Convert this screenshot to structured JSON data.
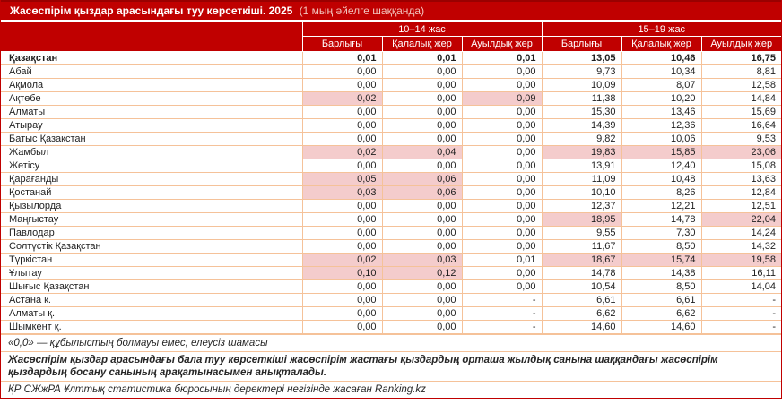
{
  "title": {
    "main": "Жасөспірім қыздар арасындағы туу көрсеткіші. 2025",
    "sub": "(1 мың әйелге шаққанда)"
  },
  "table": {
    "header": {
      "groups": [
        "10–14 жас",
        "15–19 жас"
      ],
      "subcolumns": [
        "Барлығы",
        "Қалалық жер",
        "Ауылдық жер",
        "Барлығы",
        "Қалалық жер",
        "Ауылдық жер"
      ]
    },
    "rows": [
      {
        "region": "Қазақстан",
        "bold": true,
        "values": [
          "0,01",
          "0,01",
          "0,01",
          "13,05",
          "10,46",
          "16,75"
        ],
        "hl": [
          false,
          false,
          false,
          false,
          false,
          false
        ]
      },
      {
        "region": "Абай",
        "values": [
          "0,00",
          "0,00",
          "0,00",
          "9,73",
          "10,34",
          "8,81"
        ],
        "hl": [
          false,
          false,
          false,
          false,
          false,
          false
        ]
      },
      {
        "region": "Ақмола",
        "values": [
          "0,00",
          "0,00",
          "0,00",
          "10,09",
          "8,07",
          "12,58"
        ],
        "hl": [
          false,
          false,
          false,
          false,
          false,
          false
        ]
      },
      {
        "region": "Ақтөбе",
        "values": [
          "0,02",
          "0,00",
          "0,09",
          "11,38",
          "10,20",
          "14,84"
        ],
        "hl": [
          true,
          false,
          true,
          false,
          false,
          false
        ]
      },
      {
        "region": "Алматы",
        "values": [
          "0,00",
          "0,00",
          "0,00",
          "15,30",
          "13,46",
          "15,69"
        ],
        "hl": [
          false,
          false,
          false,
          false,
          false,
          false
        ]
      },
      {
        "region": "Атырау",
        "values": [
          "0,00",
          "0,00",
          "0,00",
          "14,39",
          "12,36",
          "16,64"
        ],
        "hl": [
          false,
          false,
          false,
          false,
          false,
          false
        ]
      },
      {
        "region": "Батыс Қазақстан",
        "values": [
          "0,00",
          "0,00",
          "0,00",
          "9,82",
          "10,06",
          "9,53"
        ],
        "hl": [
          false,
          false,
          false,
          false,
          false,
          false
        ]
      },
      {
        "region": "Жамбыл",
        "values": [
          "0,02",
          "0,04",
          "0,00",
          "19,83",
          "15,85",
          "23,06"
        ],
        "hl": [
          true,
          true,
          false,
          true,
          true,
          true
        ]
      },
      {
        "region": "Жетісу",
        "values": [
          "0,00",
          "0,00",
          "0,00",
          "13,91",
          "12,40",
          "15,08"
        ],
        "hl": [
          false,
          false,
          false,
          false,
          false,
          false
        ]
      },
      {
        "region": "Қарағанды",
        "values": [
          "0,05",
          "0,06",
          "0,00",
          "11,09",
          "10,48",
          "13,63"
        ],
        "hl": [
          true,
          true,
          false,
          false,
          false,
          false
        ]
      },
      {
        "region": "Қостанай",
        "values": [
          "0,03",
          "0,06",
          "0,00",
          "10,10",
          "8,26",
          "12,84"
        ],
        "hl": [
          true,
          true,
          false,
          false,
          false,
          false
        ]
      },
      {
        "region": "Қызылорда",
        "values": [
          "0,00",
          "0,00",
          "0,00",
          "12,37",
          "12,21",
          "12,51"
        ],
        "hl": [
          false,
          false,
          false,
          false,
          false,
          false
        ]
      },
      {
        "region": "Маңғыстау",
        "values": [
          "0,00",
          "0,00",
          "0,00",
          "18,95",
          "14,78",
          "22,04"
        ],
        "hl": [
          false,
          false,
          false,
          true,
          false,
          true
        ]
      },
      {
        "region": "Павлодар",
        "values": [
          "0,00",
          "0,00",
          "0,00",
          "9,55",
          "7,30",
          "14,24"
        ],
        "hl": [
          false,
          false,
          false,
          false,
          false,
          false
        ]
      },
      {
        "region": "Солтүстік Қазақстан",
        "values": [
          "0,00",
          "0,00",
          "0,00",
          "11,67",
          "8,50",
          "14,32"
        ],
        "hl": [
          false,
          false,
          false,
          false,
          false,
          false
        ]
      },
      {
        "region": "Түркістан",
        "values": [
          "0,02",
          "0,03",
          "0,01",
          "18,67",
          "15,74",
          "19,58"
        ],
        "hl": [
          true,
          true,
          false,
          true,
          true,
          true
        ]
      },
      {
        "region": "Ұлытау",
        "values": [
          "0,10",
          "0,12",
          "0,00",
          "14,78",
          "14,38",
          "16,11"
        ],
        "hl": [
          true,
          true,
          false,
          false,
          false,
          false
        ]
      },
      {
        "region": "Шығыс Қазақстан",
        "values": [
          "0,00",
          "0,00",
          "0,00",
          "10,54",
          "8,50",
          "14,04"
        ],
        "hl": [
          false,
          false,
          false,
          false,
          false,
          false
        ]
      },
      {
        "region": "Астана қ.",
        "values": [
          "0,00",
          "0,00",
          "-",
          "6,61",
          "6,61",
          "-"
        ],
        "hl": [
          false,
          false,
          false,
          false,
          false,
          false
        ]
      },
      {
        "region": "Алматы қ.",
        "values": [
          "0,00",
          "0,00",
          "-",
          "6,62",
          "6,62",
          "-"
        ],
        "hl": [
          false,
          false,
          false,
          false,
          false,
          false
        ]
      },
      {
        "region": "Шымкент қ.",
        "values": [
          "0,00",
          "0,00",
          "-",
          "14,60",
          "14,60",
          "-"
        ],
        "hl": [
          false,
          false,
          false,
          false,
          false,
          false
        ]
      }
    ]
  },
  "notes": [
    "«0,0» — құбылыстың болмауы емес, елеусіз шамасы",
    "Жасөспірім қыздар арасындағы бала туу көрсеткіші жасөспірім жастағы қыздардың орташа жылдық санына шаққандағы жасөспірім қыздардың босану санының арақатынасымен анықталады.",
    "ҚР СЖжРА Ұлттық статистика бюросының деректері негізінде жасаған Ranking.kz"
  ],
  "colors": {
    "accent_red": "#C00000",
    "highlight_pink": "#F4CCCC",
    "grid_orange": "#F5C299",
    "title_sub_pink": "#F2C5BE"
  }
}
